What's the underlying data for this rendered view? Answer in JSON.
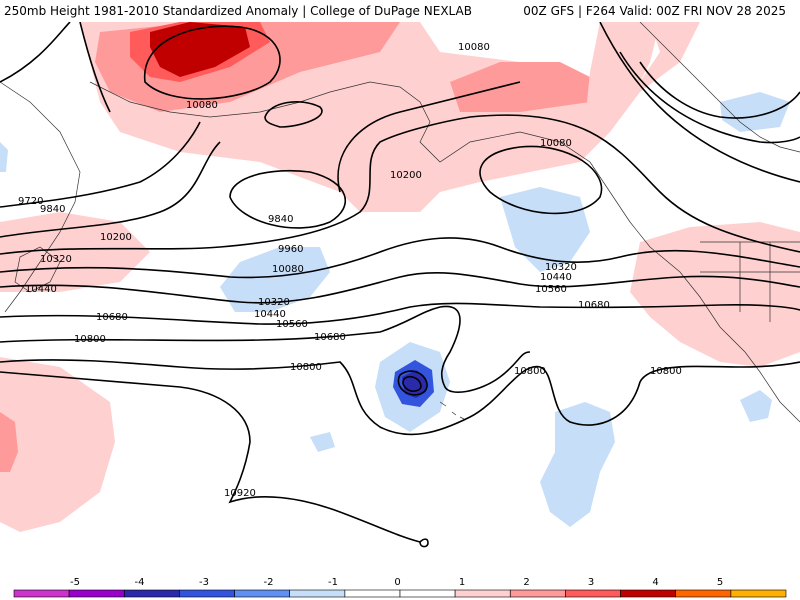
{
  "header": {
    "title_left": "250mb Height 1981-2010 Standardized Anomaly | College of DuPage NEXLAB",
    "title_right": "00Z GFS | F264 Valid: 00Z FRI NOV 28 2025"
  },
  "map": {
    "contour_labels": [
      "10080",
      "10080",
      "10080",
      "10200",
      "9720",
      "9840",
      "9840",
      "9960",
      "10080",
      "10200",
      "10320",
      "10440",
      "10320",
      "10440",
      "10560",
      "10680",
      "10680",
      "10800",
      "10800",
      "10800",
      "10800",
      "10920",
      "10320",
      "10440",
      "10560",
      "10680"
    ]
  },
  "colorbar": {
    "ticks": [
      "-5",
      "-4",
      "-3",
      "-2",
      "-1",
      "0",
      "1",
      "2",
      "3",
      "4",
      "5"
    ],
    "colors": [
      "#cc33cc",
      "#9900cc",
      "#2a2aaa",
      "#3355dd",
      "#5f8ff0",
      "#c6def8",
      "#ffffff",
      "#ffffff",
      "#ffd0d0",
      "#ff9a9a",
      "#ff5b5b",
      "#c00000",
      "#ff6600",
      "#ffb000"
    ]
  }
}
